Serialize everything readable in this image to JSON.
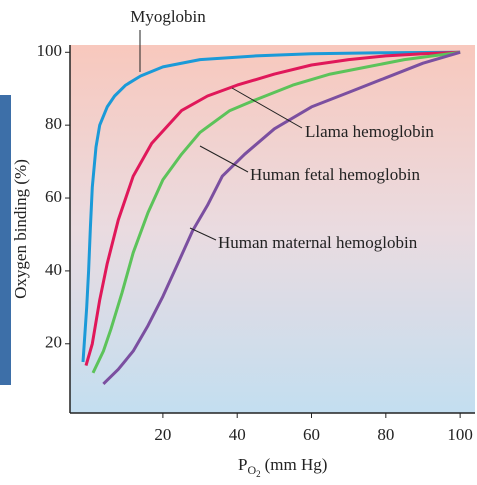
{
  "chart_data": {
    "type": "line",
    "y_label": "Oxygen binding (%)",
    "x_label_parts": [
      "P",
      "O",
      "2",
      "(mm Hg)"
    ],
    "xlim": [
      -5,
      104
    ],
    "ylim": [
      1,
      102
    ],
    "xticks": [
      20,
      40,
      60,
      80,
      100
    ],
    "yticks": [
      20,
      40,
      60,
      80,
      100
    ],
    "series": [
      {
        "name": "Myoglobin",
        "color": "#1b9ad8",
        "x": [
          -1.5,
          -0.5,
          0,
          0.5,
          1,
          2,
          3,
          5,
          7,
          10,
          14,
          20,
          30,
          45,
          60,
          80,
          100
        ],
        "values": [
          15,
          30,
          40,
          52,
          63,
          74,
          80,
          85,
          88,
          91,
          93.5,
          96,
          98,
          99,
          99.6,
          99.9,
          100
        ]
      },
      {
        "name": "Llama hemoglobin",
        "color": "#e0185a",
        "x": [
          -0.7,
          1,
          3,
          5,
          8,
          12,
          17,
          25,
          32,
          40,
          50,
          60,
          70,
          80,
          90,
          100
        ],
        "values": [
          14,
          20,
          32,
          42,
          54,
          66,
          75,
          84,
          88,
          91,
          94,
          96.5,
          98,
          99,
          99.6,
          100
        ]
      },
      {
        "name": "Human fetal hemoglobin",
        "color": "#5cc35a",
        "x": [
          1.2,
          4,
          6,
          9,
          12,
          16,
          20,
          25,
          30,
          38,
          45,
          55,
          65,
          75,
          85,
          100
        ],
        "values": [
          12,
          18,
          24,
          34,
          45,
          56,
          65,
          72,
          78,
          84,
          87,
          91,
          94,
          96,
          98,
          100
        ]
      },
      {
        "name": "Human maternal hemoglobin",
        "color": "#7b4fa0",
        "x": [
          4,
          8,
          12,
          16,
          20,
          24,
          28,
          32,
          36,
          42,
          50,
          60,
          70,
          80,
          90,
          100
        ],
        "values": [
          9,
          13,
          18,
          25,
          33,
          42,
          51,
          58,
          66,
          72,
          79,
          85,
          89,
          93,
          97,
          100
        ]
      }
    ]
  }
}
